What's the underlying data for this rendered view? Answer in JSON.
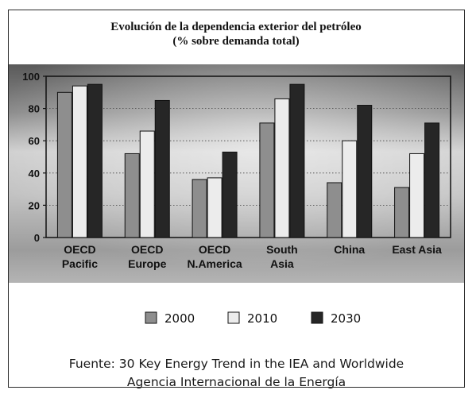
{
  "chart_data": {
    "type": "bar",
    "title": "Evolución de la dependencia exterior del petróleo",
    "subtitle": "(% sobre demanda total)",
    "categories": [
      [
        "OECD",
        "Pacific"
      ],
      [
        "OECD",
        "Europe"
      ],
      [
        "OECD",
        "N.America"
      ],
      [
        "South",
        "Asia"
      ],
      [
        "China"
      ],
      [
        "East Asia"
      ]
    ],
    "series": [
      {
        "name": "2000",
        "values": [
          90,
          52,
          36,
          71,
          34,
          31
        ],
        "color": "#8e8e8e"
      },
      {
        "name": "2010",
        "values": [
          94,
          66,
          37,
          86,
          60,
          52
        ],
        "color": "#ececec"
      },
      {
        "name": "2030",
        "values": [
          95,
          85,
          53,
          95,
          82,
          71
        ],
        "color": "#262626"
      }
    ],
    "ylim": [
      0,
      100
    ],
    "yticks": [
      0,
      20,
      40,
      60,
      80,
      100
    ],
    "grid": true,
    "legend_position": "bottom"
  },
  "source": {
    "line1": "Fuente: 30 Key Energy Trend in the IEA and Worldwide",
    "line2": "Agencia Internacional de la Energía"
  }
}
